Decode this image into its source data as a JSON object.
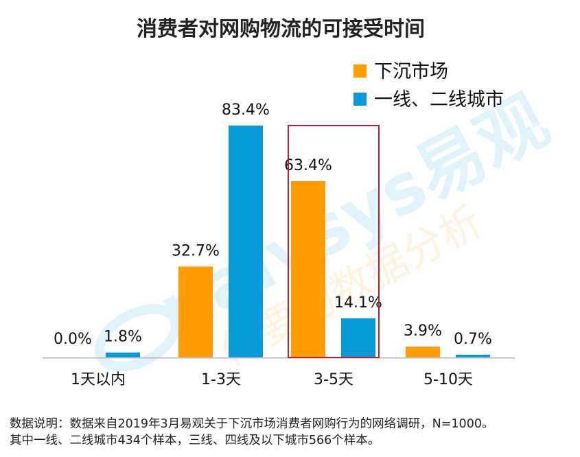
{
  "chart_data": {
    "type": "bar",
    "title": "消费者对网购物流的可接受时间",
    "categories": [
      "1天以内",
      "1-3天",
      "3-5天",
      "5-10天"
    ],
    "series": [
      {
        "name": "下沉市场",
        "color": "#FF9C00",
        "values": [
          0.0,
          32.7,
          63.4,
          3.9
        ],
        "labels": [
          "0.0%",
          "32.7%",
          "63.4%",
          "3.9%"
        ]
      },
      {
        "name": "一线、二线城市",
        "color": "#0899DB",
        "values": [
          1.8,
          83.4,
          14.1,
          0.7
        ],
        "labels": [
          "1.8%",
          "83.4%",
          "14.1%",
          "0.7%"
        ]
      }
    ],
    "ylim": [
      0,
      100
    ],
    "grid": false,
    "legend": "top-right",
    "highlight": {
      "category": "3-5天",
      "color": "#C0202A"
    }
  },
  "watermark": {
    "brand": "nalysys易观",
    "slogan": "你要的数据分析"
  },
  "footnote": {
    "line1": "数据说明：数据来自2019年3月易观关于下沉市场消费者网购行为的网络调研，N=1000。",
    "line2": "其中一线、二线城市434个样本，三线、四线及以下城市566个样本。"
  }
}
